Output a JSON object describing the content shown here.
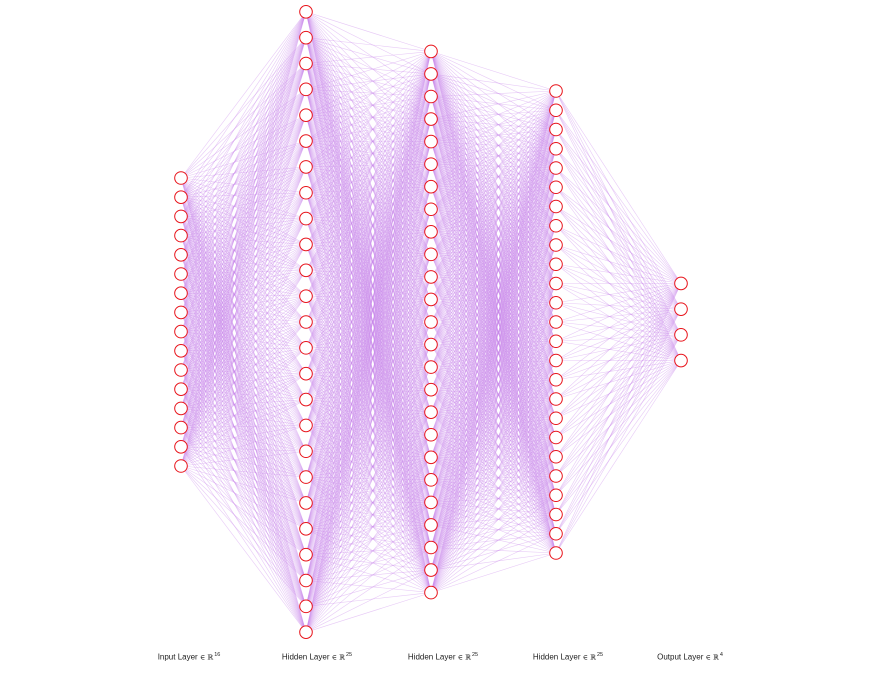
{
  "diagram": {
    "type": "fully-connected-neural-network",
    "layers": [
      {
        "label": "Input Layer",
        "space": "∈ ℝ",
        "dim_text": "16",
        "neurons": 16
      },
      {
        "label": "Hidden Layer",
        "space": "∈ ℝ",
        "dim_text": "25",
        "neurons": 25
      },
      {
        "label": "Hidden Layer",
        "space": "∈ ℝ",
        "dim_text": "25",
        "neurons": 25
      },
      {
        "label": "Hidden Layer",
        "space": "∈ ℝ",
        "dim_text": "25",
        "neurons": 25
      },
      {
        "label": "Output Layer",
        "space": "∈ ℝ",
        "dim_text": "4",
        "neurons": 4
      }
    ],
    "colors": {
      "edge": "#c989ec",
      "node_stroke": "#e8131a",
      "node_fill": "#ffffff"
    }
  }
}
